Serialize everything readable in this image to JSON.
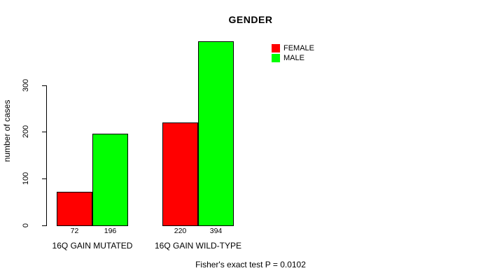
{
  "chart_data": {
    "type": "bar",
    "title": "GENDER",
    "xlabel": "",
    "ylabel": "number of cases",
    "categories": [
      "16Q GAIN MUTATED",
      "16Q GAIN WILD-TYPE"
    ],
    "series": [
      {
        "name": "FEMALE",
        "color": "#ff0000",
        "values": [
          72,
          220
        ]
      },
      {
        "name": "MALE",
        "color": "#00ff00",
        "values": [
          196,
          394
        ]
      }
    ],
    "value_labels": [
      [
        72,
        196
      ],
      [
        220,
        394
      ]
    ],
    "yticks": [
      0,
      100,
      200,
      300
    ],
    "ylim": [
      0,
      394
    ],
    "grid": false,
    "legend_position": "top-right",
    "bar_border_color": "#000000",
    "axis_color": "#000000",
    "annotation": "Fisher's exact test P = 0.0102"
  }
}
